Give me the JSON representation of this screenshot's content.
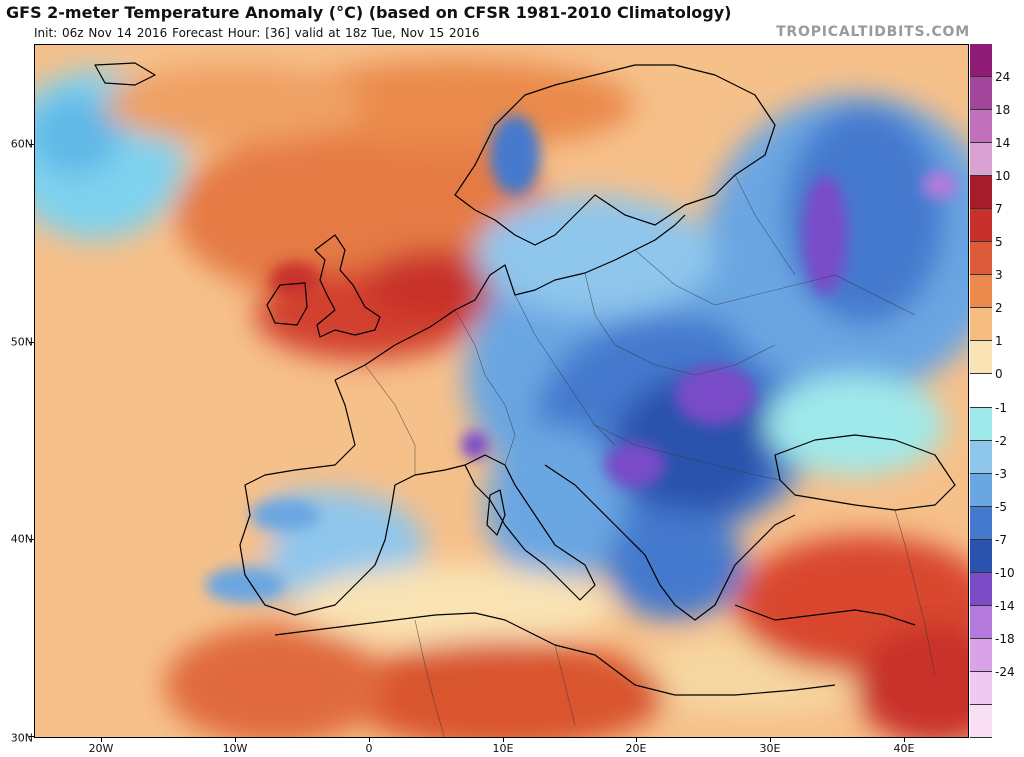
{
  "header": {
    "title": "GFS 2-meter Temperature Anomaly (°C) (based on CFSR 1981-2010 Climatology)",
    "subtitle": "Init: 06z Nov 14 2016   Forecast Hour: [36]   valid at 18z Tue, Nov 15 2016",
    "brand": "TROPICALTIDBITS.COM"
  },
  "map": {
    "lat_labels": [
      "30N",
      "40N",
      "50N",
      "60N"
    ],
    "lon_labels": [
      "20W",
      "10W",
      "0",
      "10E",
      "20E",
      "30E",
      "40E"
    ]
  },
  "colorbar": {
    "labels": [
      "24",
      "18",
      "14",
      "10",
      "7",
      "5",
      "3",
      "2",
      "1",
      "0",
      "-1",
      "-2",
      "-3",
      "-5",
      "-7",
      "-10",
      "-14",
      "-18",
      "-24"
    ],
    "colors": [
      "#8e1c74",
      "#a3459a",
      "#c170ba",
      "#d9a2d3",
      "#a61c2a",
      "#c8302c",
      "#dd5a3a",
      "#ec8a4e",
      "#f6bd80",
      "#fae3b4",
      "#ffffff",
      "#9fe9ea",
      "#8fc6ec",
      "#6aa6e2",
      "#4479ce",
      "#2b52ad",
      "#7a4cc8",
      "#b379dc",
      "#d9a3e8",
      "#efc9f0",
      "#f8dff4"
    ]
  }
}
